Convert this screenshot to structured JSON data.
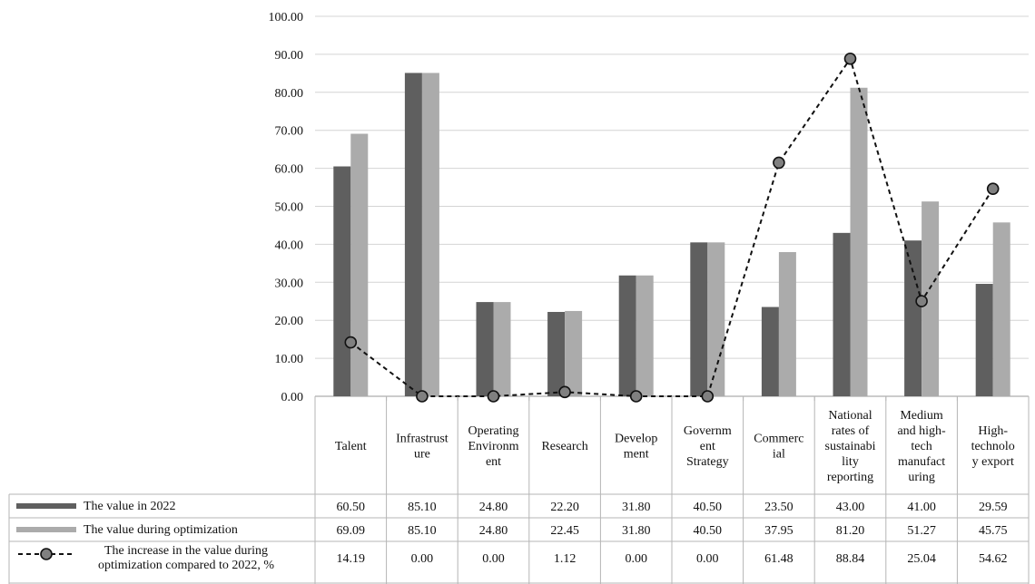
{
  "chart_data": {
    "type": "bar",
    "categories": [
      [
        "Talent"
      ],
      [
        "Infrastrust",
        "ure"
      ],
      [
        "Operating",
        "Environm",
        "ent"
      ],
      [
        "Research"
      ],
      [
        "Develop",
        "ment"
      ],
      [
        "Governm",
        "ent",
        "Strategy"
      ],
      [
        "Commerc",
        "ial"
      ],
      [
        "National",
        "rates of",
        "sustainabi",
        "lity",
        "reporting"
      ],
      [
        "Medium",
        "and high-",
        "tech",
        "manufact",
        "uring"
      ],
      [
        "High-",
        "technolo",
        "y export"
      ]
    ],
    "y_ticks": [
      "0.00",
      "10.00",
      "20.00",
      "30.00",
      "40.00",
      "50.00",
      "60.00",
      "70.00",
      "80.00",
      "90.00",
      "100.00"
    ],
    "ylim": [
      0,
      100
    ],
    "grid": "horizontal",
    "legend_placement": "data table below chart",
    "series": [
      {
        "name": "The value in 2022",
        "kind": "bar",
        "color": "#5f5f5f",
        "values": [
          60.5,
          85.1,
          24.8,
          22.2,
          31.8,
          40.5,
          23.5,
          43.0,
          41.0,
          29.59
        ],
        "labels": [
          "60.50",
          "85.10",
          "24.80",
          "22.20",
          "31.80",
          "40.50",
          "23.50",
          "43.00",
          "41.00",
          "29.59"
        ]
      },
      {
        "name": "The value during optimization",
        "kind": "bar",
        "color": "#ababab",
        "values": [
          69.09,
          85.1,
          24.8,
          22.45,
          31.8,
          40.5,
          37.95,
          81.2,
          51.27,
          45.75
        ],
        "labels": [
          "69.09",
          "85.10",
          "24.80",
          "22.45",
          "31.80",
          "40.50",
          "37.95",
          "81.20",
          "51.27",
          "45.75"
        ]
      },
      {
        "name": [
          "The increase in the value during",
          "optimization compared to 2022, %"
        ],
        "kind": "line",
        "color": "#111111",
        "marker_fill": "#808080",
        "values": [
          14.19,
          0.0,
          0.0,
          1.12,
          0.0,
          0.0,
          61.48,
          88.84,
          25.04,
          54.62
        ],
        "labels": [
          "14.19",
          "0.00",
          "0.00",
          "1.12",
          "0.00",
          "0.00",
          "61.48",
          "88.84",
          "25.04",
          "54.62"
        ]
      }
    ]
  }
}
